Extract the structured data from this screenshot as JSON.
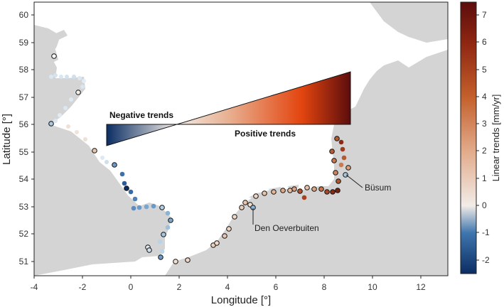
{
  "map": {
    "x_axis": {
      "title": "Longitude [°]",
      "ticks": [
        "-4",
        "-2",
        "0",
        "2",
        "4",
        "6",
        "8",
        "10",
        "12"
      ]
    },
    "y_axis": {
      "title": "Latitude [°]",
      "ticks": [
        "60",
        "59",
        "58",
        "57",
        "56",
        "55",
        "54",
        "53",
        "52",
        "51"
      ]
    },
    "colorbar": {
      "title": "Linear trends [mm/yr]",
      "ticks": [
        "7",
        "6",
        "5",
        "4",
        "3",
        "2",
        "1",
        "0",
        "-1",
        "-2"
      ],
      "range": [
        -2.5,
        7.5
      ]
    },
    "legend_wedge": {
      "negative_label": "Negative trends",
      "positive_label": "Positive trends"
    },
    "annotations": {
      "busum": "Büsum",
      "den_oever": "Den Oeverbuiten"
    },
    "colors": {
      "land": "#d4d4d4",
      "sea": "#ffffff",
      "strong_negative": "#0b2d63",
      "neutral": "#f2ece7",
      "strong_positive": "#5c0d0d"
    }
  }
}
